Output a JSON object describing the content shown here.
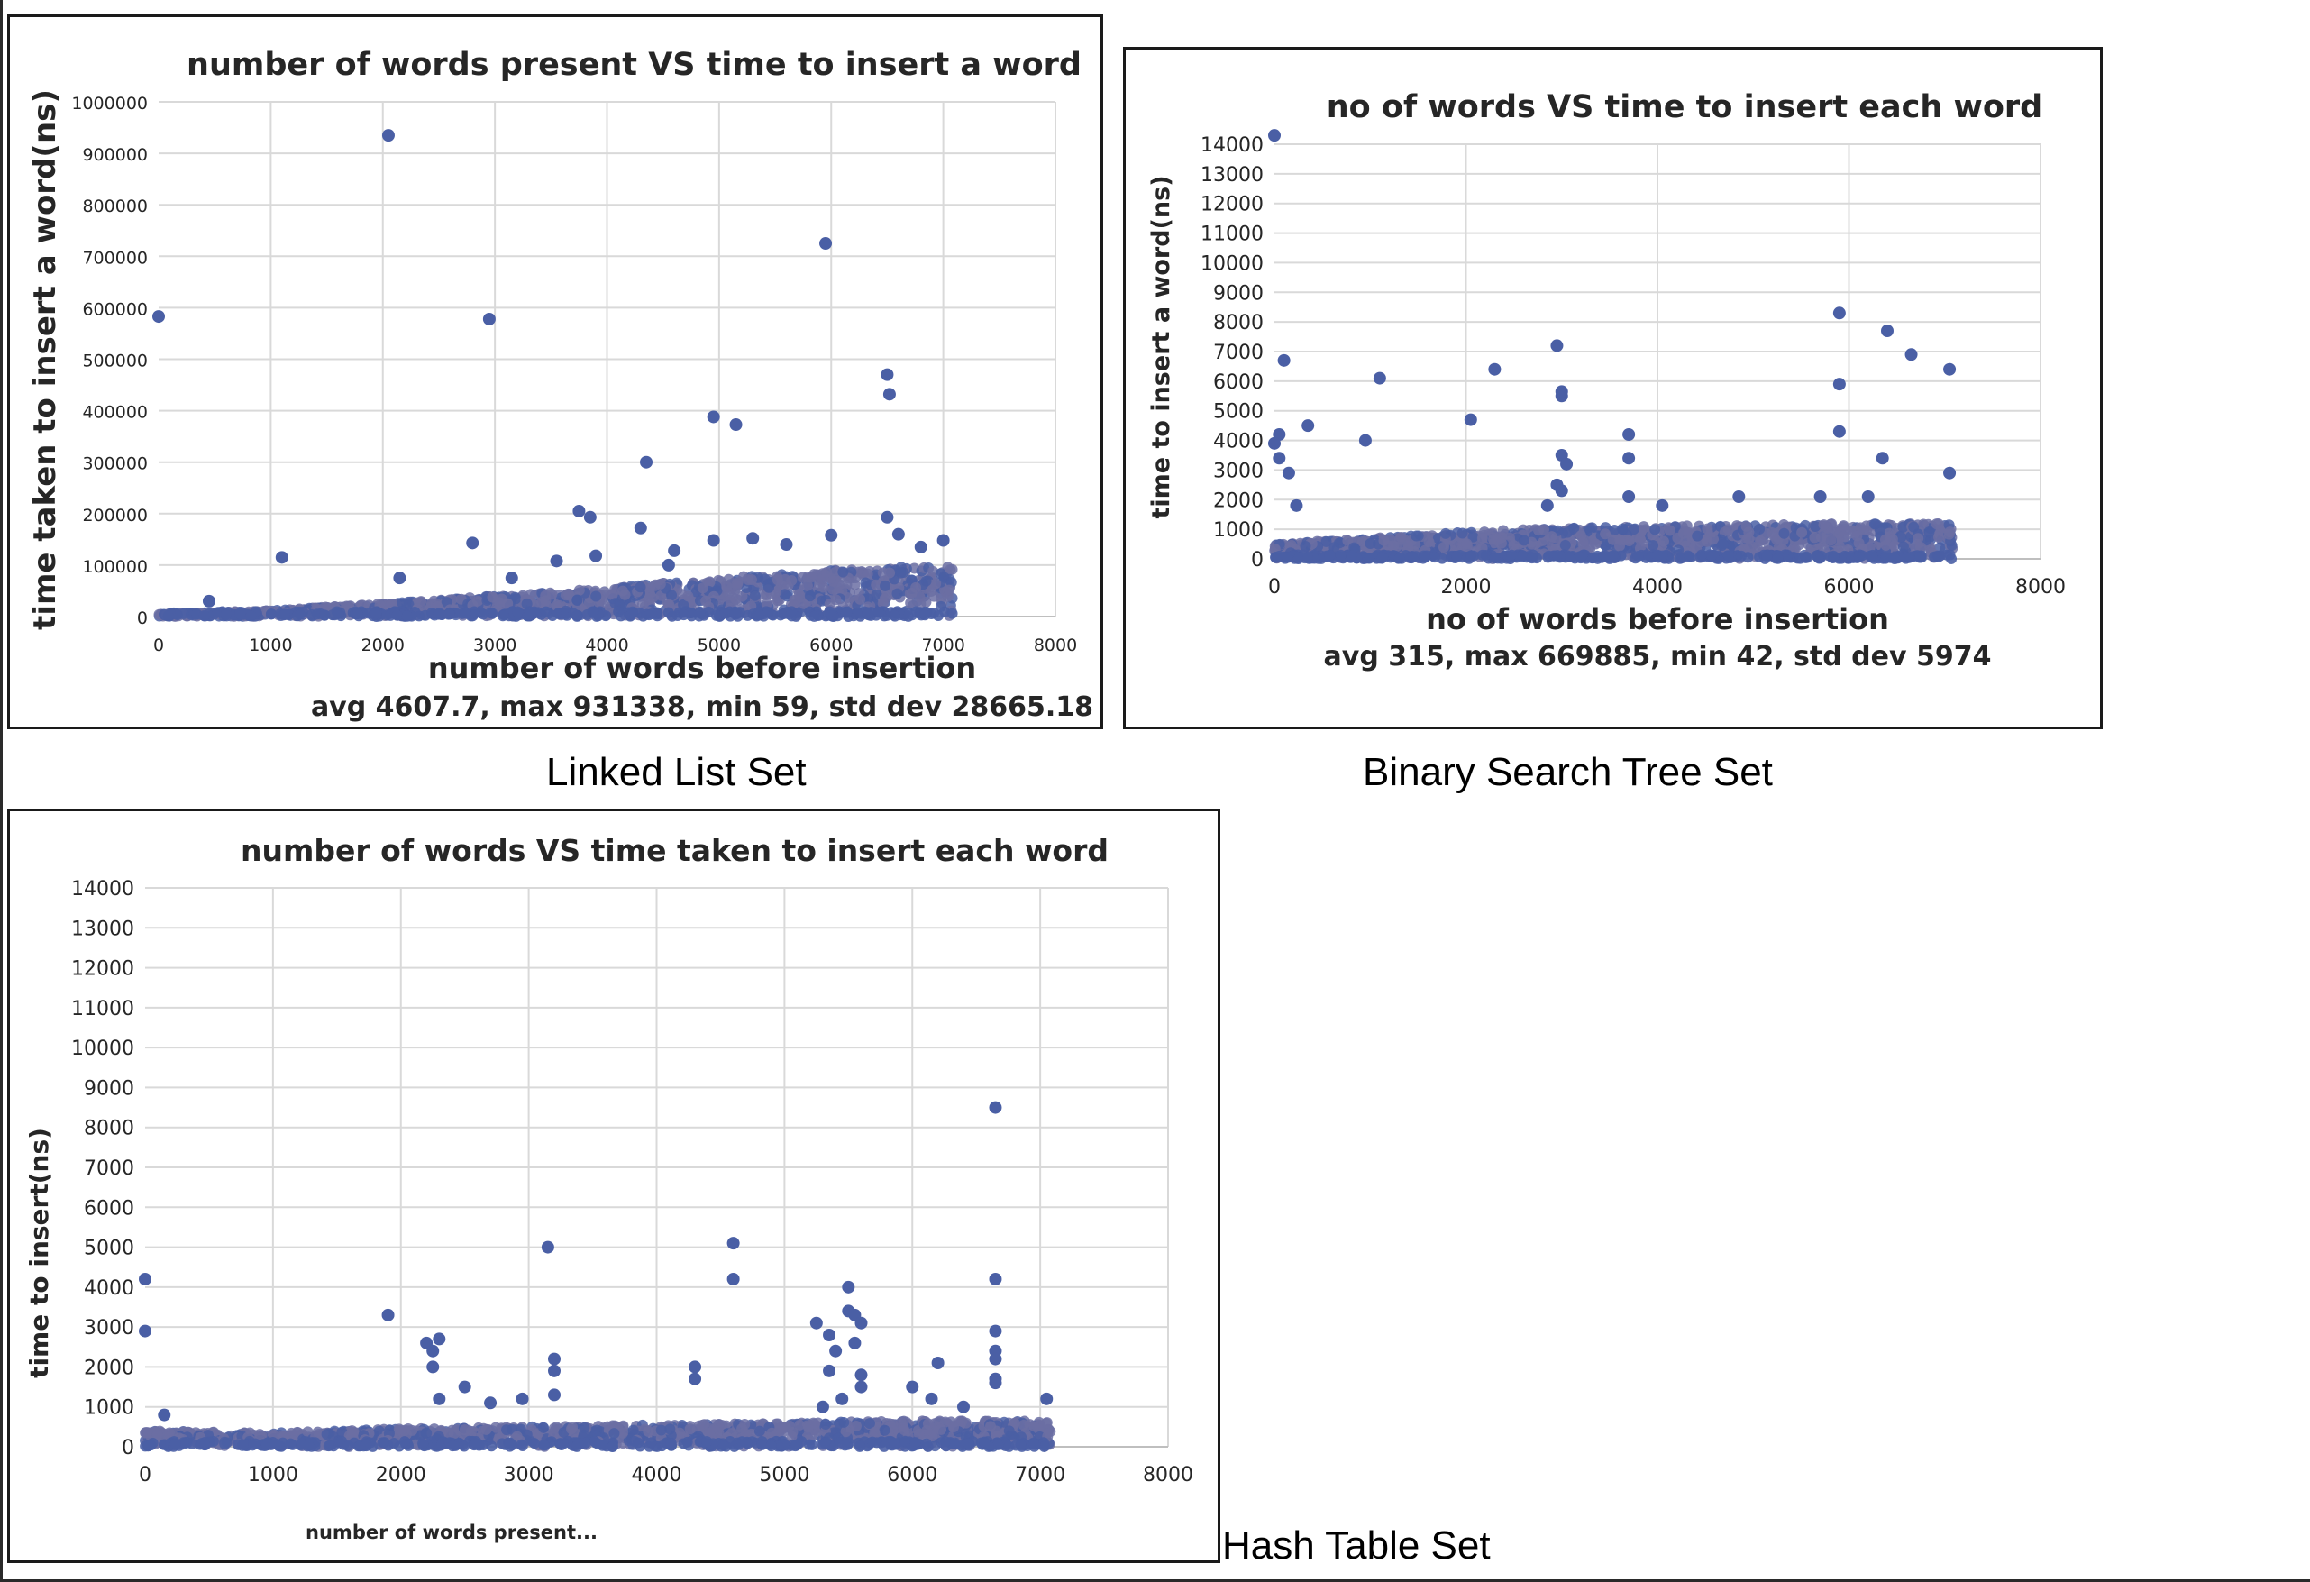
{
  "colors": {
    "point": "#4a5fa5",
    "point_dense": "#6b6fa3",
    "grid": "#d9d9d9",
    "axis": "#bfbfbf",
    "text": "#262626"
  },
  "captions": {
    "ll": "Linked List Set",
    "bst": "Binary Search Tree Set",
    "ht": "Hash Table Set"
  },
  "chart_data": [
    {
      "id": "ll",
      "type": "scatter",
      "title": "number of words present VS time to insert a word",
      "xlabel": "number of words before insertion",
      "ylabel": "time taken to insert a word(ns)",
      "stats": "avg 4607.7, max 931338, min 59, std dev 28665.18",
      "xlim": [
        0,
        8000
      ],
      "ylim": [
        0,
        1000000
      ],
      "xticks": [
        0,
        1000,
        2000,
        3000,
        4000,
        5000,
        6000,
        7000,
        8000
      ],
      "yticks": [
        0,
        100000,
        200000,
        300000,
        400000,
        500000,
        600000,
        700000,
        800000,
        900000,
        1000000
      ],
      "grid": true,
      "bulk": [
        [
          0,
          5000
        ],
        [
          1000,
          12000
        ],
        [
          2000,
          25000
        ],
        [
          3000,
          40000
        ],
        [
          4000,
          55000
        ],
        [
          5000,
          75000
        ],
        [
          6000,
          90000
        ],
        [
          7000,
          100000
        ]
      ],
      "outliers": [
        [
          0,
          583000
        ],
        [
          2050,
          935000
        ],
        [
          2950,
          578000
        ],
        [
          5950,
          725000
        ],
        [
          4950,
          388000
        ],
        [
          5150,
          373000
        ],
        [
          6500,
          470000
        ],
        [
          6520,
          432000
        ],
        [
          4350,
          300000
        ],
        [
          3750,
          205000
        ],
        [
          3850,
          193000
        ],
        [
          4300,
          172000
        ],
        [
          2800,
          143000
        ],
        [
          1100,
          115000
        ],
        [
          6500,
          193000
        ],
        [
          6000,
          158000
        ],
        [
          5300,
          152000
        ],
        [
          4950,
          148000
        ],
        [
          3900,
          118000
        ],
        [
          3550,
          108000
        ],
        [
          6600,
          160000
        ],
        [
          7000,
          148000
        ],
        [
          5600,
          140000
        ],
        [
          4600,
          128000
        ],
        [
          6800,
          135000
        ],
        [
          450,
          30000
        ],
        [
          2150,
          75000
        ],
        [
          3150,
          75000
        ],
        [
          4550,
          100000
        ]
      ]
    },
    {
      "id": "bst",
      "type": "scatter",
      "title": "no of words VS time to insert each word",
      "xlabel": "no of words before insertion",
      "ylabel": "time to insert a word(ns)",
      "stats": "avg 315, max 669885, min 42, std dev 5974",
      "xlim": [
        0,
        8000
      ],
      "ylim": [
        0,
        14000
      ],
      "xticks": [
        0,
        2000,
        4000,
        6000,
        8000
      ],
      "yticks": [
        0,
        1000,
        2000,
        3000,
        4000,
        5000,
        6000,
        7000,
        8000,
        9000,
        10000,
        11000,
        12000,
        13000,
        14000
      ],
      "grid": true,
      "bulk": [
        [
          0,
          500
        ],
        [
          1000,
          700
        ],
        [
          2000,
          900
        ],
        [
          3000,
          1050
        ],
        [
          4000,
          1100
        ],
        [
          5000,
          1150
        ],
        [
          6000,
          1200
        ],
        [
          7000,
          1200
        ]
      ],
      "outliers": [
        [
          0,
          14300
        ],
        [
          100,
          6700
        ],
        [
          50,
          4200
        ],
        [
          0,
          3900
        ],
        [
          50,
          3400
        ],
        [
          150,
          2900
        ],
        [
          230,
          1800
        ],
        [
          350,
          4500
        ],
        [
          950,
          4000
        ],
        [
          1100,
          6100
        ],
        [
          2050,
          4700
        ],
        [
          2300,
          6400
        ],
        [
          2950,
          7200
        ],
        [
          3000,
          5500
        ],
        [
          3000,
          5650
        ],
        [
          3000,
          3500
        ],
        [
          3050,
          3200
        ],
        [
          2950,
          2500
        ],
        [
          3000,
          2300
        ],
        [
          3700,
          4200
        ],
        [
          3700,
          3400
        ],
        [
          3700,
          2100
        ],
        [
          5900,
          8300
        ],
        [
          5900,
          5900
        ],
        [
          5900,
          4300
        ],
        [
          6400,
          7700
        ],
        [
          6650,
          6900
        ],
        [
          7050,
          6400
        ],
        [
          7050,
          2900
        ],
        [
          6350,
          3400
        ],
        [
          4850,
          2100
        ],
        [
          5700,
          2100
        ],
        [
          6200,
          2100
        ],
        [
          2850,
          1800
        ],
        [
          4050,
          1800
        ]
      ]
    },
    {
      "id": "ht",
      "type": "scatter",
      "title": "number of words VS time taken to insert each word",
      "xlabel": "number of words present...",
      "ylabel": "time to insert(ns)",
      "xlim": [
        0,
        8000
      ],
      "ylim": [
        0,
        14000
      ],
      "xticks": [
        0,
        1000,
        2000,
        3000,
        4000,
        5000,
        6000,
        7000,
        8000
      ],
      "yticks": [
        0,
        1000,
        2000,
        3000,
        4000,
        5000,
        6000,
        7000,
        8000,
        9000,
        10000,
        11000,
        12000,
        13000,
        14000
      ],
      "grid": true,
      "bulk": [
        [
          0,
          400
        ],
        [
          1000,
          350
        ],
        [
          2000,
          450
        ],
        [
          3000,
          500
        ],
        [
          4000,
          550
        ],
        [
          5000,
          600
        ],
        [
          6000,
          650
        ],
        [
          7000,
          650
        ]
      ],
      "outliers": [
        [
          0,
          4200
        ],
        [
          0,
          2900
        ],
        [
          150,
          800
        ],
        [
          1900,
          3300
        ],
        [
          2200,
          2600
        ],
        [
          2250,
          2400
        ],
        [
          2300,
          2700
        ],
        [
          2250,
          2000
        ],
        [
          2300,
          1200
        ],
        [
          2500,
          1500
        ],
        [
          2700,
          1100
        ],
        [
          2950,
          1200
        ],
        [
          3150,
          5000
        ],
        [
          3200,
          2200
        ],
        [
          3200,
          1900
        ],
        [
          3200,
          1300
        ],
        [
          4300,
          2000
        ],
        [
          4300,
          1700
        ],
        [
          4600,
          5100
        ],
        [
          4600,
          4200
        ],
        [
          5250,
          3100
        ],
        [
          5350,
          2800
        ],
        [
          5400,
          2400
        ],
        [
          5350,
          1900
        ],
        [
          5500,
          4000
        ],
        [
          5500,
          3400
        ],
        [
          5550,
          3300
        ],
        [
          5600,
          3100
        ],
        [
          5550,
          2600
        ],
        [
          5600,
          1800
        ],
        [
          5600,
          1500
        ],
        [
          5450,
          1200
        ],
        [
          6000,
          1500
        ],
        [
          6200,
          2100
        ],
        [
          6150,
          1200
        ],
        [
          6650,
          8500
        ],
        [
          6650,
          4200
        ],
        [
          6650,
          2900
        ],
        [
          6650,
          2400
        ],
        [
          6650,
          2200
        ],
        [
          6650,
          1700
        ],
        [
          6650,
          1600
        ],
        [
          7050,
          1200
        ],
        [
          5300,
          1000
        ],
        [
          6400,
          1000
        ]
      ]
    }
  ]
}
